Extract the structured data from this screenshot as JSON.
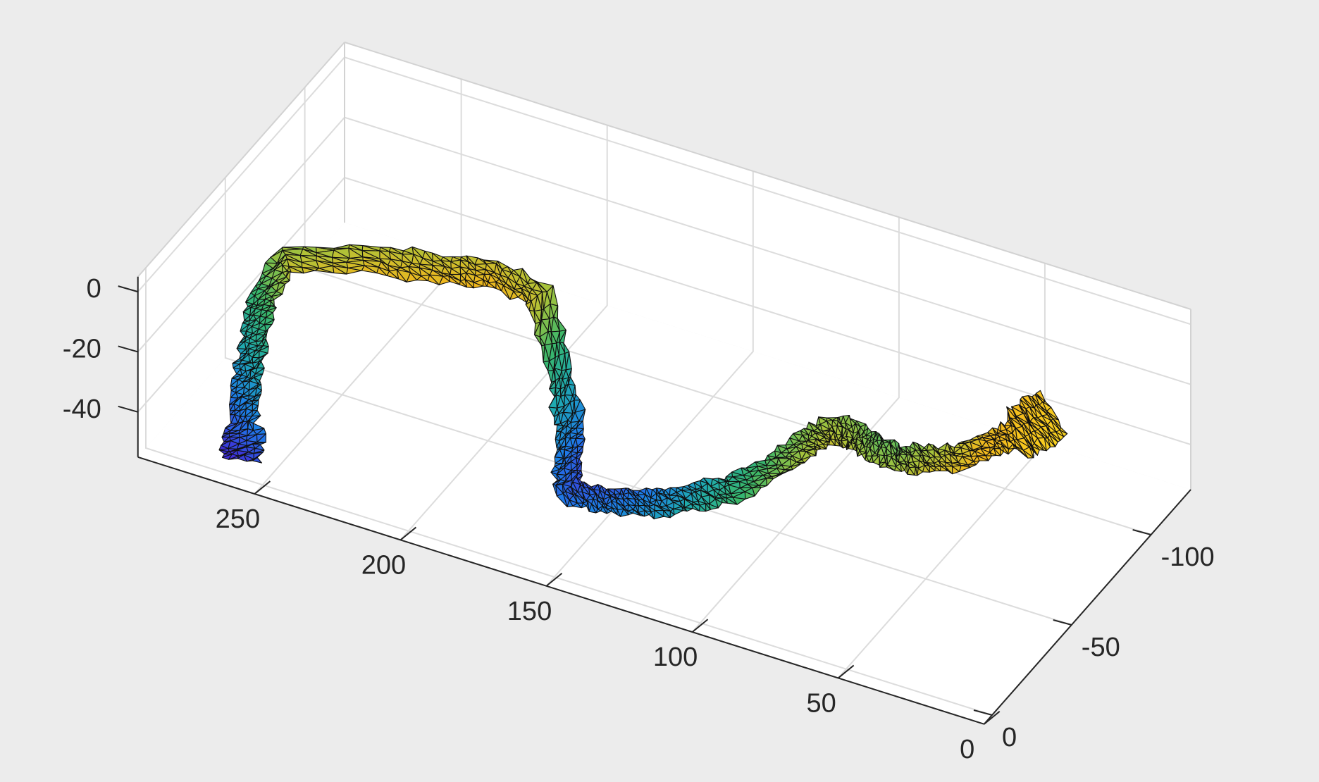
{
  "chart_data": {
    "type": "surface",
    "title": "",
    "xlabel": "",
    "ylabel": "",
    "zlabel": "",
    "grid": true,
    "colormap": "parula",
    "axes": {
      "x": {
        "ticks": [
          0,
          50,
          100,
          150,
          200,
          250
        ],
        "labels": [
          "0",
          "50",
          "100",
          "150",
          "200",
          "250"
        ],
        "range": [
          0,
          290
        ]
      },
      "y": {
        "ticks": [
          0,
          -50,
          -100
        ],
        "labels": [
          "0",
          "-50",
          "-100"
        ],
        "range": [
          -125,
          5
        ]
      },
      "z": {
        "ticks": [
          0,
          -20,
          -40
        ],
        "labels": [
          "0",
          "-20",
          "-40"
        ],
        "range": [
          -55,
          5
        ]
      }
    },
    "path": {
      "x": [
        260,
        262,
        266,
        268,
        270,
        272,
        268,
        240,
        220,
        205,
        190,
        180,
        172,
        168,
        162,
        150,
        140,
        128,
        116,
        104,
        92,
        86,
        82,
        76,
        70,
        60,
        50,
        38,
        28,
        22,
        18,
        14
      ],
      "y": [
        -5,
        -10,
        -18,
        -25,
        -32,
        -40,
        -48,
        -55,
        -58,
        -62,
        -64,
        -58,
        -50,
        -42,
        -30,
        -28,
        -28,
        -27,
        -27,
        -27,
        -33,
        -42,
        -48,
        -52,
        -53,
        -50,
        -48,
        -48,
        -52,
        -56,
        -60,
        -65
      ],
      "z": [
        -53,
        -48,
        -42,
        -36,
        -30,
        -24,
        -14,
        -10,
        -9,
        -8,
        -12,
        -30,
        -40,
        -46,
        -48,
        -46,
        -44,
        -40,
        -34,
        -28,
        -20,
        -16,
        -14,
        -16,
        -19,
        -18,
        -14,
        -10,
        -4,
        -2,
        0,
        2
      ]
    },
    "color_scale": {
      "min": -55,
      "max": 3,
      "colors": [
        "#3f2fd8",
        "#1d7ee8",
        "#1faab1",
        "#38b76b",
        "#a6c33c",
        "#f3b71c",
        "#f8d220"
      ]
    }
  }
}
